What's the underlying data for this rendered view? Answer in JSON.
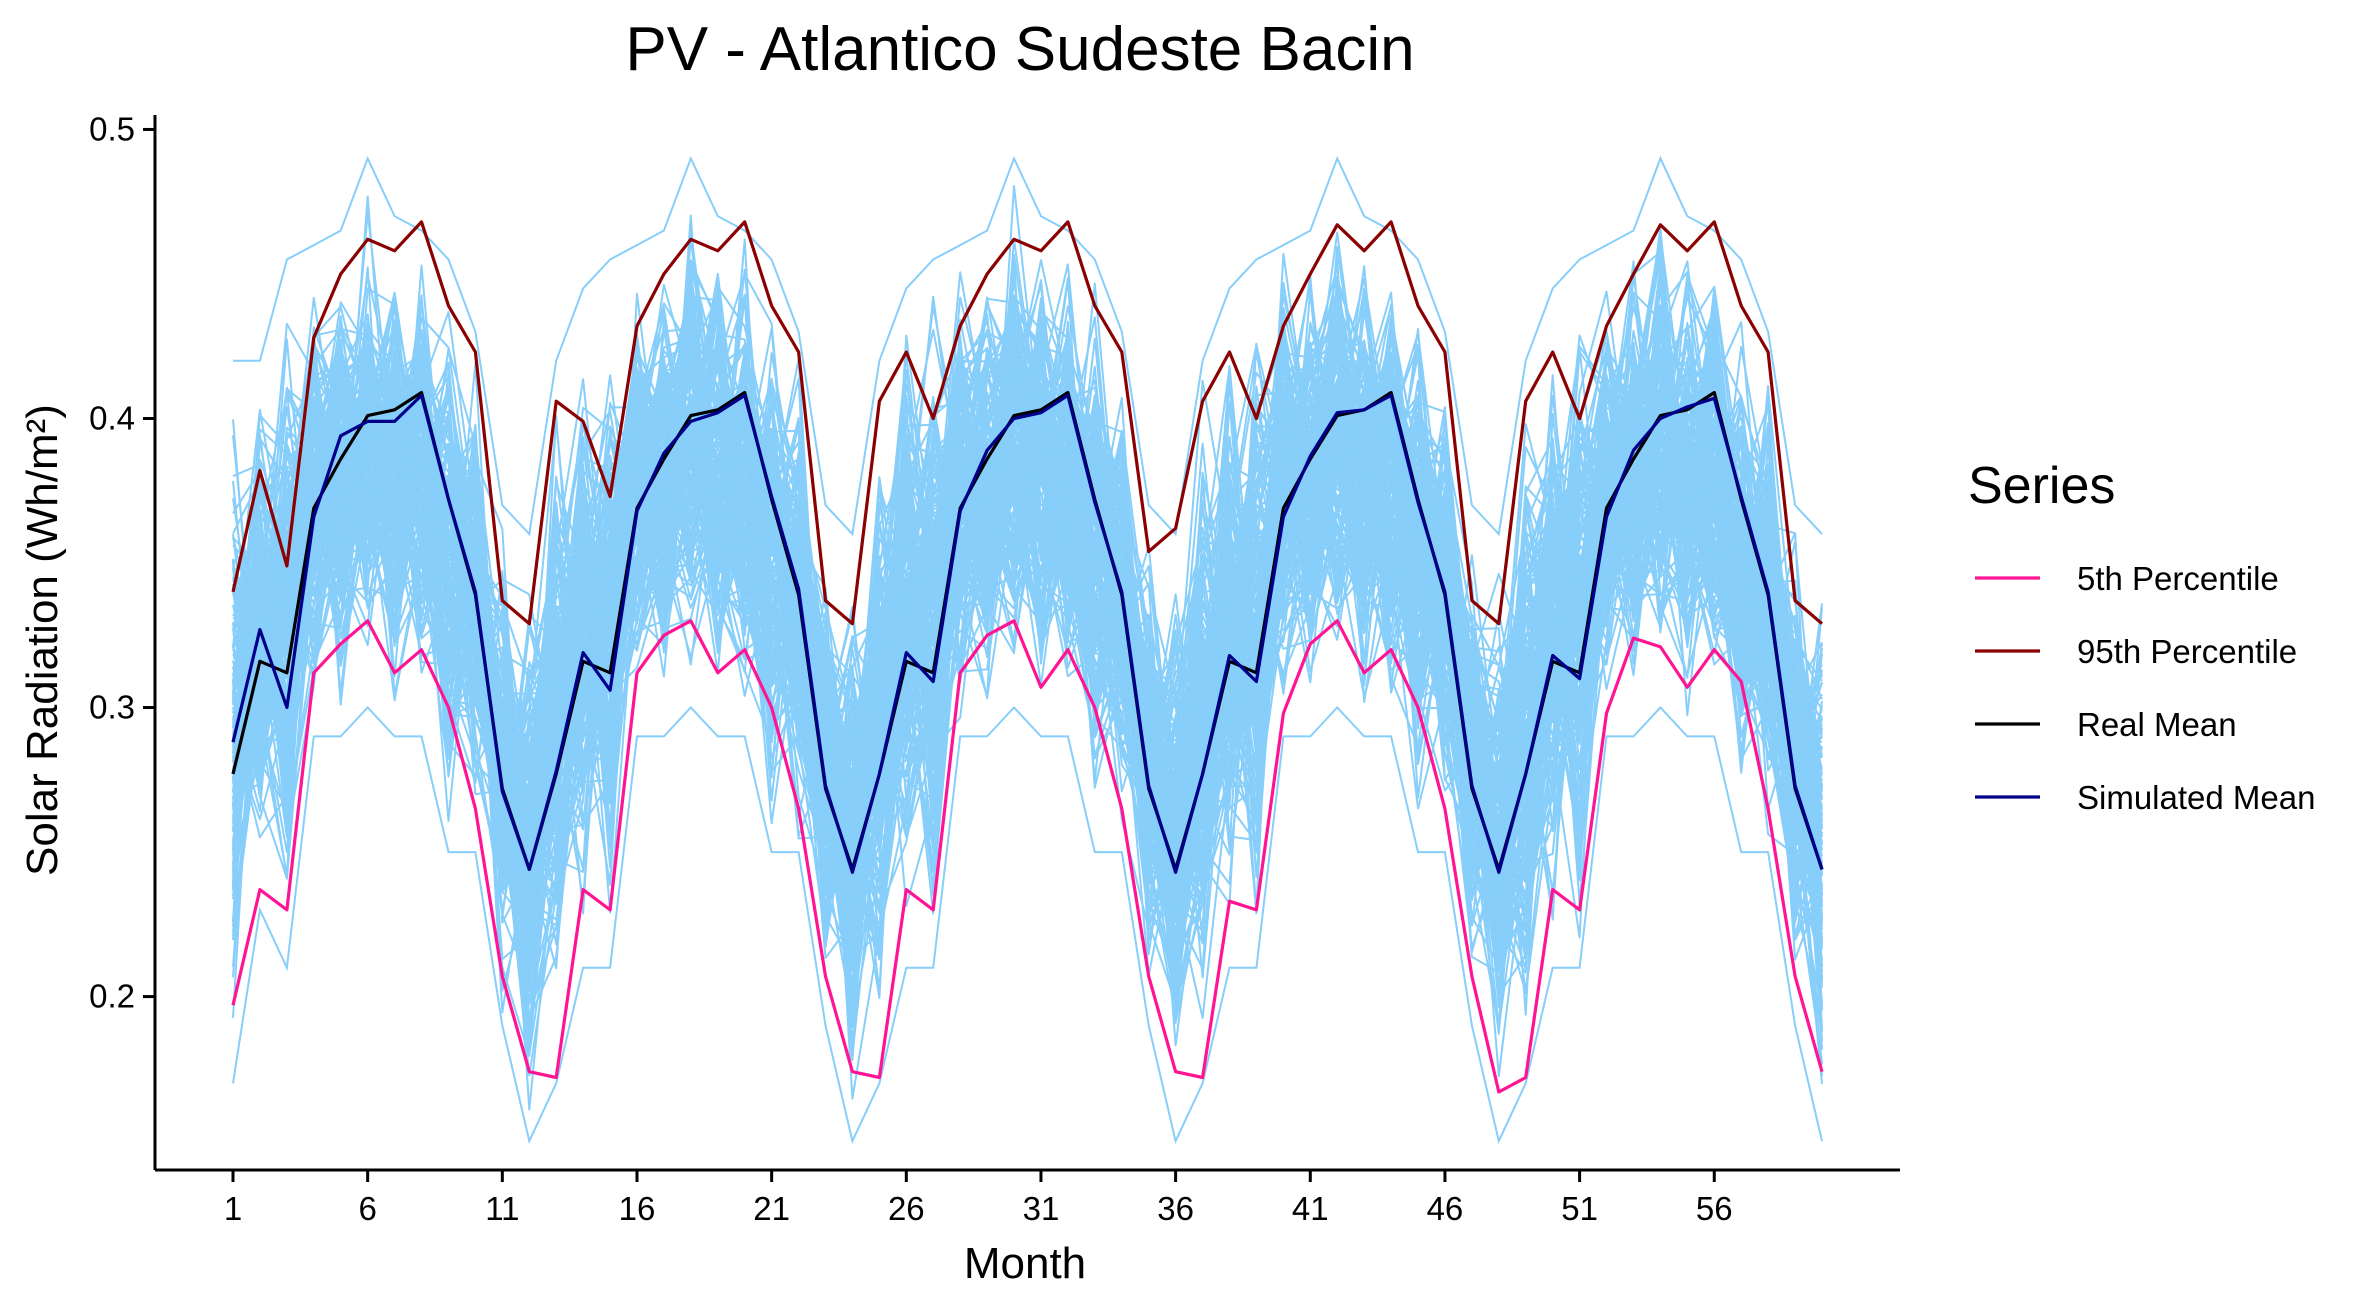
{
  "chart_data": {
    "type": "line",
    "title": "PV - Atlantico Sudeste Bacin",
    "xlabel": "Month",
    "ylabel": "Solar Radiation (Wh/m²)",
    "xlim": [
      1,
      60
    ],
    "ylim": [
      0.14,
      0.505
    ],
    "x_ticks": [
      1,
      6,
      11,
      16,
      21,
      26,
      31,
      36,
      41,
      46,
      51,
      56
    ],
    "y_ticks": [
      0.2,
      0.3,
      0.4,
      0.5
    ],
    "y_tick_labels": [
      "0.2",
      "0.3",
      "0.4",
      "0.5"
    ],
    "grid": false,
    "legend": {
      "title": "Series",
      "position": "right",
      "items": [
        "5th Percentile",
        "95th Percentile",
        "Real Mean",
        "Simulated Mean"
      ]
    },
    "simulations": {
      "description": "Many simulated scenario lines (light blue band)",
      "color": "#87CEFA",
      "lower_envelope": [
        0.17,
        0.23,
        0.21,
        0.29,
        0.29,
        0.3,
        0.29,
        0.29,
        0.25,
        0.25,
        0.19,
        0.15,
        0.17,
        0.21,
        0.21,
        0.29,
        0.29,
        0.3,
        0.29,
        0.29,
        0.25,
        0.25,
        0.19,
        0.15,
        0.17,
        0.21,
        0.21,
        0.29,
        0.29,
        0.3,
        0.29,
        0.29,
        0.25,
        0.25,
        0.19,
        0.15,
        0.17,
        0.21,
        0.21,
        0.29,
        0.29,
        0.3,
        0.29,
        0.29,
        0.25,
        0.25,
        0.19,
        0.15,
        0.17,
        0.21,
        0.21,
        0.29,
        0.29,
        0.3,
        0.29,
        0.29,
        0.25,
        0.25,
        0.19,
        0.15
      ],
      "upper_envelope": [
        0.42,
        0.42,
        0.455,
        0.46,
        0.465,
        0.49,
        0.47,
        0.465,
        0.455,
        0.43,
        0.37,
        0.36,
        0.42,
        0.445,
        0.455,
        0.46,
        0.465,
        0.49,
        0.47,
        0.465,
        0.455,
        0.43,
        0.37,
        0.36,
        0.42,
        0.445,
        0.455,
        0.46,
        0.465,
        0.49,
        0.47,
        0.465,
        0.455,
        0.43,
        0.37,
        0.36,
        0.42,
        0.445,
        0.455,
        0.46,
        0.465,
        0.49,
        0.47,
        0.465,
        0.455,
        0.43,
        0.37,
        0.36,
        0.42,
        0.445,
        0.455,
        0.46,
        0.465,
        0.49,
        0.47,
        0.465,
        0.455,
        0.43,
        0.37,
        0.36
      ]
    },
    "x": [
      1,
      2,
      3,
      4,
      5,
      6,
      7,
      8,
      9,
      10,
      11,
      12,
      13,
      14,
      15,
      16,
      17,
      18,
      19,
      20,
      21,
      22,
      23,
      24,
      25,
      26,
      27,
      28,
      29,
      30,
      31,
      32,
      33,
      34,
      35,
      36,
      37,
      38,
      39,
      40,
      41,
      42,
      43,
      44,
      45,
      46,
      47,
      48,
      49,
      50,
      51,
      52,
      53,
      54,
      55,
      56,
      57,
      58,
      59,
      60
    ],
    "series": [
      {
        "name": "5th Percentile",
        "color": "#FF1493",
        "values": [
          0.197,
          0.237,
          0.23,
          0.312,
          0.322,
          0.33,
          0.312,
          0.32,
          0.3,
          0.265,
          0.207,
          0.174,
          0.172,
          0.237,
          0.23,
          0.312,
          0.325,
          0.33,
          0.312,
          0.32,
          0.3,
          0.265,
          0.207,
          0.174,
          0.172,
          0.237,
          0.23,
          0.312,
          0.325,
          0.33,
          0.307,
          0.32,
          0.3,
          0.265,
          0.207,
          0.174,
          0.172,
          0.233,
          0.23,
          0.298,
          0.322,
          0.33,
          0.312,
          0.32,
          0.3,
          0.265,
          0.207,
          0.167,
          0.172,
          0.237,
          0.23,
          0.298,
          0.324,
          0.321,
          0.307,
          0.32,
          0.309,
          0.265,
          0.207,
          0.174
        ]
      },
      {
        "name": "95th Percentile",
        "color": "#8B0000",
        "values": [
          0.34,
          0.382,
          0.349,
          0.428,
          0.45,
          0.462,
          0.458,
          0.468,
          0.439,
          0.423,
          0.337,
          0.329,
          0.406,
          0.399,
          0.373,
          0.432,
          0.45,
          0.462,
          0.458,
          0.468,
          0.439,
          0.423,
          0.337,
          0.329,
          0.406,
          0.423,
          0.4,
          0.432,
          0.45,
          0.462,
          0.458,
          0.468,
          0.439,
          0.423,
          0.354,
          0.362,
          0.406,
          0.423,
          0.4,
          0.432,
          0.45,
          0.467,
          0.458,
          0.468,
          0.439,
          0.423,
          0.337,
          0.329,
          0.406,
          0.423,
          0.4,
          0.432,
          0.45,
          0.467,
          0.458,
          0.468,
          0.439,
          0.423,
          0.337,
          0.329
        ]
      },
      {
        "name": "Real Mean",
        "color": "#000000",
        "values": [
          0.277,
          0.316,
          0.312,
          0.369,
          0.386,
          0.401,
          0.403,
          0.409,
          0.372,
          0.339,
          0.272,
          0.244,
          0.277,
          0.316,
          0.312,
          0.369,
          0.386,
          0.401,
          0.403,
          0.409,
          0.372,
          0.339,
          0.272,
          0.244,
          0.277,
          0.316,
          0.312,
          0.369,
          0.386,
          0.401,
          0.403,
          0.409,
          0.372,
          0.339,
          0.272,
          0.244,
          0.277,
          0.316,
          0.312,
          0.369,
          0.386,
          0.401,
          0.403,
          0.409,
          0.372,
          0.339,
          0.272,
          0.244,
          0.277,
          0.316,
          0.312,
          0.369,
          0.386,
          0.401,
          0.403,
          0.409,
          0.372,
          0.339,
          0.272,
          0.244
        ]
      },
      {
        "name": "Simulated Mean",
        "color": "#00008B",
        "values": [
          0.288,
          0.327,
          0.3,
          0.366,
          0.394,
          0.399,
          0.399,
          0.408,
          0.372,
          0.34,
          0.271,
          0.244,
          0.278,
          0.319,
          0.306,
          0.368,
          0.388,
          0.399,
          0.402,
          0.408,
          0.373,
          0.341,
          0.273,
          0.243,
          0.277,
          0.319,
          0.309,
          0.368,
          0.389,
          0.4,
          0.402,
          0.408,
          0.371,
          0.34,
          0.273,
          0.243,
          0.277,
          0.318,
          0.309,
          0.366,
          0.387,
          0.402,
          0.403,
          0.408,
          0.371,
          0.34,
          0.273,
          0.243,
          0.277,
          0.318,
          0.31,
          0.366,
          0.389,
          0.4,
          0.404,
          0.407,
          0.373,
          0.34,
          0.273,
          0.244
        ]
      }
    ]
  }
}
